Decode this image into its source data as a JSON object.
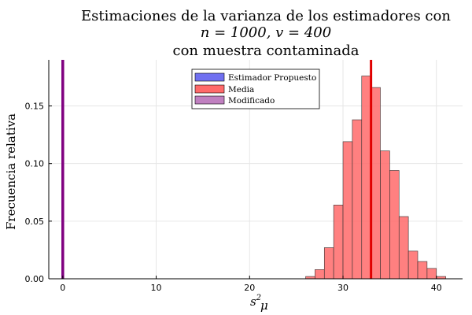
{
  "chart_data": {
    "type": "bar",
    "title_lines": [
      "Estimaciones de la varianza de los estimadores con",
      "n = 1000, v = 400",
      "con muestra contaminada"
    ],
    "xlabel": "s",
    "xlabel_sup": "2",
    "xlabel_sub": "μ",
    "ylabel": "Frecuencia relativa",
    "xlim": [
      -1.5,
      42.8
    ],
    "ylim": [
      0,
      0.19
    ],
    "xticks": [
      0,
      10,
      20,
      30,
      40
    ],
    "yticks": [
      0.0,
      0.05,
      0.1,
      0.15
    ],
    "ytick_labels": [
      "0.00",
      "0.05",
      "0.10",
      "0.15"
    ],
    "grid": true,
    "legend_position": "top-center",
    "series": [
      {
        "name": "Estimador Propuesto",
        "kind": "vline",
        "x": [
          0
        ],
        "color": "#7070f0"
      },
      {
        "name": "Media",
        "kind": "histogram",
        "bin_width": 1,
        "bin_starts": [
          26,
          27,
          28,
          29,
          30,
          31,
          32,
          33,
          34,
          35,
          36,
          37,
          38,
          39,
          40
        ],
        "values": [
          0.002,
          0.008,
          0.027,
          0.064,
          0.119,
          0.138,
          0.176,
          0.166,
          0.111,
          0.094,
          0.054,
          0.024,
          0.015,
          0.009,
          0.002
        ],
        "mean_line_x": 33,
        "color": "#ff6a6a",
        "line_color": "#e00000"
      },
      {
        "name": "Modificado",
        "kind": "vline",
        "x": [
          0
        ],
        "color": "#800080"
      }
    ]
  }
}
